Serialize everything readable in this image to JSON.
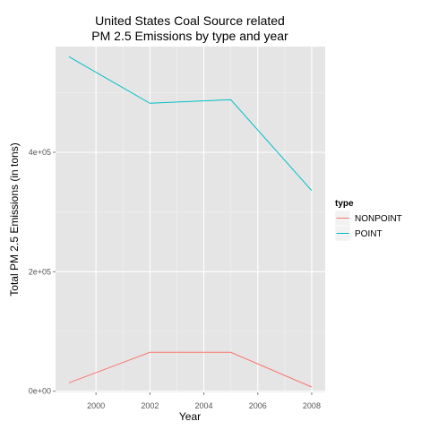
{
  "chart_data": {
    "type": "line",
    "title_lines": [
      "United States Coal Source related",
      "PM 2.5 Emissions by type and year"
    ],
    "xlabel": "Year",
    "ylabel": "Total PM 2.5 Emissions (in tons)",
    "x": [
      1999,
      2002,
      2005,
      2008
    ],
    "xlim": [
      1998.5,
      2008.5
    ],
    "ylim": [
      -2000,
      577000
    ],
    "x_ticks": [
      2000,
      2002,
      2004,
      2006,
      2008
    ],
    "x_tick_labels": [
      "2000",
      "2002",
      "2004",
      "2006",
      "2008"
    ],
    "y_ticks": [
      0,
      200000,
      400000
    ],
    "y_tick_labels": [
      "0e+00",
      "2e+05",
      "4e+05"
    ],
    "legend_title": "type",
    "legend_position": "right",
    "grid": true,
    "series": [
      {
        "name": "NONPOINT",
        "color": "#F8766D",
        "values": [
          14000,
          65000,
          65000,
          7000
        ]
      },
      {
        "name": "POINT",
        "color": "#00BFC4",
        "values": [
          560000,
          482000,
          488000,
          336000
        ]
      }
    ]
  }
}
